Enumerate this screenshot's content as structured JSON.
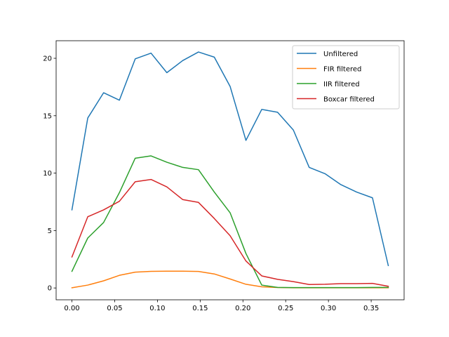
{
  "chart_data": {
    "type": "line",
    "title": "",
    "xlabel": "",
    "ylabel": "",
    "xlim": [
      -0.0185,
      0.3885
    ],
    "ylim": [
      -1.03,
      21.53
    ],
    "xticks": [
      0.0,
      0.05,
      0.1,
      0.15,
      0.2,
      0.25,
      0.3,
      0.35
    ],
    "xtick_labels": [
      "0.00",
      "0.05",
      "0.10",
      "0.15",
      "0.20",
      "0.25",
      "0.30",
      "0.35"
    ],
    "yticks": [
      0,
      5,
      10,
      15,
      20
    ],
    "ytick_labels": [
      "0",
      "5",
      "10",
      "15",
      "20"
    ],
    "grid": false,
    "legend_position": "top-right",
    "x": [
      0.0,
      0.0185,
      0.037,
      0.0555,
      0.074,
      0.0925,
      0.111,
      0.1295,
      0.148,
      0.1665,
      0.185,
      0.2035,
      0.222,
      0.2405,
      0.259,
      0.2775,
      0.296,
      0.3145,
      0.333,
      0.3515,
      0.37
    ],
    "series": [
      {
        "name": "Unfiltered",
        "color": "#1f77b4",
        "values": [
          6.8,
          14.8,
          17.0,
          16.35,
          19.95,
          20.45,
          18.75,
          19.8,
          20.55,
          20.1,
          17.55,
          12.85,
          15.55,
          15.3,
          13.75,
          10.5,
          9.95,
          9.0,
          8.35,
          7.85,
          1.95
        ]
      },
      {
        "name": "FIR filtered",
        "color": "#ff7f0e",
        "values": [
          0.02,
          0.25,
          0.62,
          1.1,
          1.38,
          1.45,
          1.46,
          1.46,
          1.44,
          1.22,
          0.78,
          0.32,
          0.1,
          0.04,
          0.02,
          0.02,
          0.02,
          0.02,
          0.02,
          0.02,
          0.02
        ]
      },
      {
        "name": "IIR filtered",
        "color": "#2ca02c",
        "values": [
          1.45,
          4.35,
          5.7,
          8.3,
          11.3,
          11.5,
          10.95,
          10.5,
          10.3,
          8.35,
          6.55,
          3.0,
          0.25,
          0.05,
          0.03,
          0.03,
          0.03,
          0.03,
          0.03,
          0.05,
          0.05
        ]
      },
      {
        "name": "Boxcar filtered",
        "color": "#d62728",
        "values": [
          2.7,
          6.2,
          6.8,
          7.55,
          9.25,
          9.45,
          8.8,
          7.7,
          7.45,
          6.05,
          4.55,
          2.35,
          1.05,
          0.75,
          0.55,
          0.3,
          0.32,
          0.38,
          0.38,
          0.4,
          0.15
        ]
      }
    ]
  }
}
